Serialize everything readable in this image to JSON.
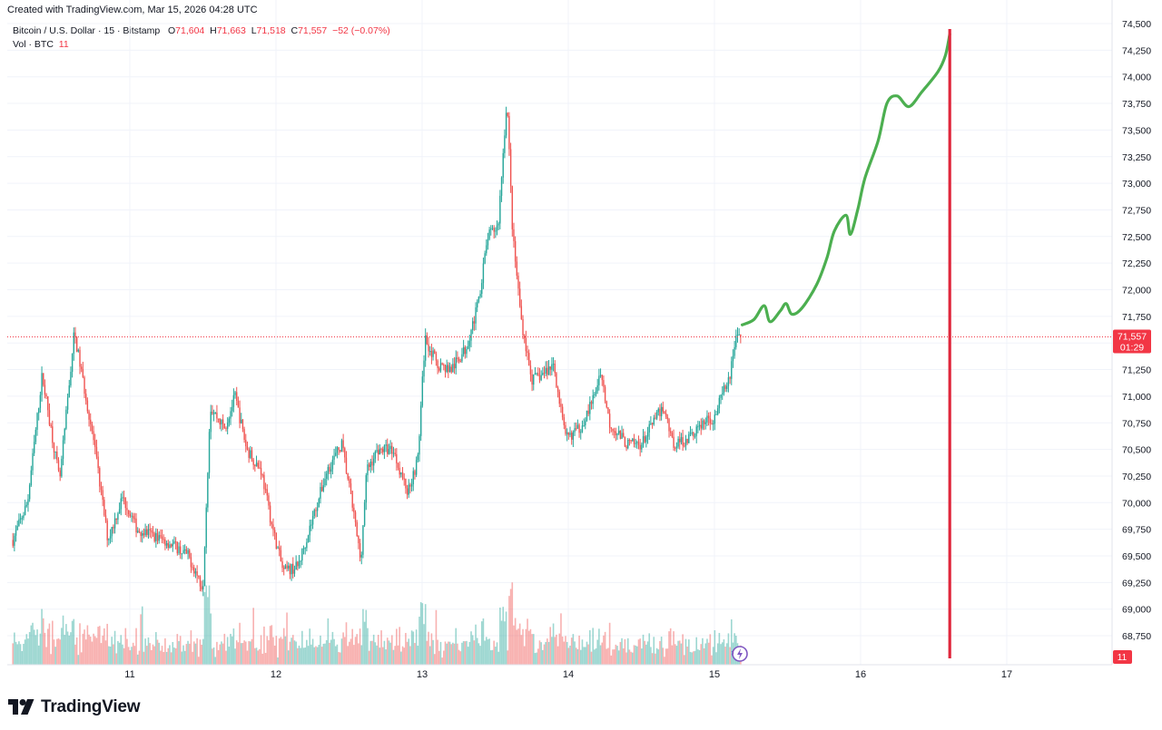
{
  "header": {
    "created": "Created with TradingView.com, Mar 15, 2026 04:28 UTC"
  },
  "legend": {
    "symbol": "Bitcoin / U.S. Dollar · 15 · Bitstamp",
    "o_label": "O",
    "o_value": "71,604",
    "h_label": "H",
    "h_value": "71,663",
    "l_label": "L",
    "l_value": "71,518",
    "c_label": "C",
    "c_value": "71,557",
    "change": "−52 (−0.07%)",
    "vol_label": "Vol · BTC",
    "vol_value": "11"
  },
  "price_label": {
    "value": "71,557",
    "countdown": "01:29"
  },
  "vol_label": "11",
  "logo": {
    "text": "TradingView"
  },
  "colors": {
    "up": "#26a69a",
    "down": "#ef5350",
    "projection": "#4caf50",
    "vline": "#e0273c",
    "last_price": "#f23645"
  },
  "chart_data": {
    "type": "candlestick",
    "title": "Bitcoin / U.S. Dollar · 15 · Bitstamp",
    "ylim": [
      68500,
      74550
    ],
    "y_ticks": [
      74500,
      74250,
      74000,
      73750,
      73500,
      73250,
      73000,
      72750,
      72500,
      72250,
      72000,
      71750,
      71500,
      71250,
      71000,
      70750,
      70500,
      70250,
      70000,
      69750,
      69500,
      69250,
      69000,
      68750
    ],
    "y_tick_labels": [
      "74,500",
      "74,250",
      "74,000",
      "73,750",
      "73,500",
      "73,250",
      "73,000",
      "72,750",
      "72,500",
      "72,250",
      "72,000",
      "71,750",
      "71,500",
      "71,250",
      "71,000",
      "70,750",
      "70,500",
      "70,250",
      "70,000",
      "69,750",
      "69,500",
      "69,250",
      "69,000",
      "68,750"
    ],
    "x_range": [
      10.2,
      17.7
    ],
    "x_ticks": [
      11,
      12,
      13,
      14,
      15,
      16,
      17
    ],
    "x_tick_labels": [
      "11",
      "12",
      "13",
      "14",
      "15",
      "16",
      "17"
    ],
    "last_price": 71557,
    "price_path": [
      [
        10.2,
        69650
      ],
      [
        10.3,
        70000
      ],
      [
        10.4,
        71200
      ],
      [
        10.52,
        70200
      ],
      [
        10.62,
        71600
      ],
      [
        10.75,
        70600
      ],
      [
        10.85,
        69650
      ],
      [
        10.95,
        70050
      ],
      [
        11.05,
        69750
      ],
      [
        11.15,
        69700
      ],
      [
        11.3,
        69600
      ],
      [
        11.4,
        69500
      ],
      [
        11.5,
        69200
      ],
      [
        11.55,
        70900
      ],
      [
        11.65,
        70700
      ],
      [
        11.72,
        71000
      ],
      [
        11.8,
        70500
      ],
      [
        11.9,
        70300
      ],
      [
        11.97,
        69800
      ],
      [
        12.05,
        69350
      ],
      [
        12.15,
        69400
      ],
      [
        12.25,
        69850
      ],
      [
        12.35,
        70300
      ],
      [
        12.45,
        70550
      ],
      [
        12.52,
        70000
      ],
      [
        12.58,
        69450
      ],
      [
        12.62,
        70300
      ],
      [
        12.7,
        70500
      ],
      [
        12.8,
        70500
      ],
      [
        12.9,
        70100
      ],
      [
        12.97,
        70400
      ],
      [
        13.02,
        71550
      ],
      [
        13.1,
        71300
      ],
      [
        13.2,
        71250
      ],
      [
        13.3,
        71450
      ],
      [
        13.38,
        71850
      ],
      [
        13.45,
        72500
      ],
      [
        13.52,
        72600
      ],
      [
        13.58,
        73800
      ],
      [
        13.62,
        72500
      ],
      [
        13.68,
        71700
      ],
      [
        13.75,
        71150
      ],
      [
        13.82,
        71200
      ],
      [
        13.9,
        71300
      ],
      [
        13.98,
        70600
      ],
      [
        14.08,
        70700
      ],
      [
        14.18,
        71000
      ],
      [
        14.22,
        71250
      ],
      [
        14.28,
        70750
      ],
      [
        14.4,
        70550
      ],
      [
        14.5,
        70550
      ],
      [
        14.58,
        70750
      ],
      [
        14.65,
        70900
      ],
      [
        14.72,
        70550
      ],
      [
        14.82,
        70600
      ],
      [
        14.92,
        70750
      ],
      [
        15.0,
        70800
      ],
      [
        15.05,
        71000
      ],
      [
        15.1,
        71150
      ],
      [
        15.15,
        71600
      ],
      [
        15.18,
        71557
      ]
    ],
    "projection": [
      [
        15.19,
        71670
      ],
      [
        15.27,
        71720
      ],
      [
        15.34,
        71850
      ],
      [
        15.38,
        71700
      ],
      [
        15.45,
        71800
      ],
      [
        15.49,
        71870
      ],
      [
        15.53,
        71770
      ],
      [
        15.6,
        71830
      ],
      [
        15.7,
        72050
      ],
      [
        15.77,
        72300
      ],
      [
        15.82,
        72550
      ],
      [
        15.9,
        72700
      ],
      [
        15.93,
        72520
      ],
      [
        15.98,
        72750
      ],
      [
        16.03,
        73050
      ],
      [
        16.12,
        73400
      ],
      [
        16.18,
        73750
      ],
      [
        16.25,
        73820
      ],
      [
        16.33,
        73720
      ],
      [
        16.42,
        73860
      ],
      [
        16.53,
        74050
      ],
      [
        16.58,
        74200
      ],
      [
        16.61,
        74400
      ]
    ],
    "vertical_line_x": 16.61
  }
}
